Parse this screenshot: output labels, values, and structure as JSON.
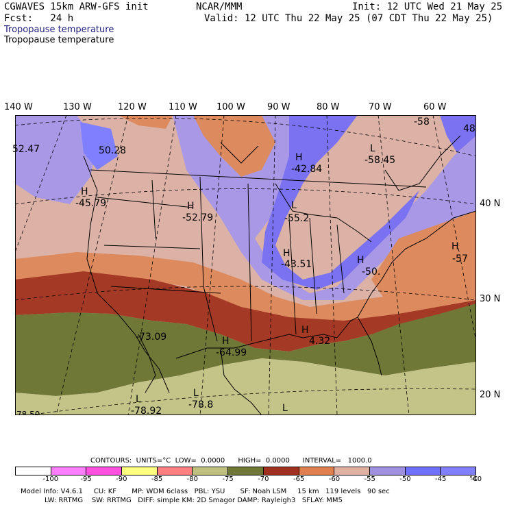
{
  "header": {
    "model": "CGWAVES 15km ARW-GFS init",
    "center": "NCAR/MMM",
    "init": "Init: 12 UTC Wed 21 May 25",
    "fcst": "Fcst:   24 h",
    "valid": "Valid: 12 UTC Thu 22 May 25 (07 CDT Thu 22 May 25)",
    "field1": "Tropopause temperature",
    "field2": "Tropopause temperature"
  },
  "lon_labels": [
    "140 W",
    "130 W",
    "120 W",
    "110 W",
    "100 W",
    "90 W",
    "80 W",
    "70 W",
    "60 W"
  ],
  "lat_labels": [
    "40 N",
    "30 N",
    "20 N"
  ],
  "map_labels": [
    {
      "letter": "",
      "value": "52.47"
    },
    {
      "letter": "",
      "value": "50.28"
    },
    {
      "letter": "H",
      "value": "-45.79"
    },
    {
      "letter": "H",
      "value": "-52.79"
    },
    {
      "letter": "H",
      "value": "-42.84"
    },
    {
      "letter": "L",
      "value": "-58.45"
    },
    {
      "letter": "",
      "value": "-58"
    },
    {
      "letter": "",
      "value": "48"
    },
    {
      "letter": "L",
      "value": "-55.2"
    },
    {
      "letter": "H",
      "value": "-43.51"
    },
    {
      "letter": "H",
      "value": "-50."
    },
    {
      "letter": "H",
      "value": "-57"
    },
    {
      "letter": "",
      "value": "-73.09"
    },
    {
      "letter": "H",
      "value": "-64.99"
    },
    {
      "letter": "H",
      "value": "4.32"
    },
    {
      "letter": "L",
      "value": "-78.92"
    },
    {
      "letter": "L",
      "value": "-78.8"
    },
    {
      "letter": "L",
      "value": ""
    },
    {
      "letter": "",
      "value": "78.50"
    }
  ],
  "contours_line": "CONTOURS:  UNITS=°C  LOW=  0.0000      HIGH=  0.0000      INTERVAL=   1000.0",
  "colorbar": {
    "colors": [
      "#ffffff",
      "#ff80ff",
      "#ff50e0",
      "#ffff80",
      "#ff8080",
      "#c0c080",
      "#707838",
      "#a03020",
      "#e08050",
      "#e0b0a0",
      "#a090e0",
      "#7070ff",
      "#8080ff"
    ],
    "ticks": [
      "-100",
      "-95",
      "-90",
      "-85",
      "-80",
      "-75",
      "-70",
      "-65",
      "-60",
      "-55",
      "-50",
      "-45",
      "-40",
      "°C"
    ]
  },
  "footer": {
    "line1": "Model Info: V4.6.1     CU: KF       MP: WDM 6class   PBL: YSU       SF: Noah LSM     15 km   119 levels   90 sec",
    "line2": "           LW: RRTMG    SW: RRTMG   DIFF: simple KM: 2D Smagor DAMP: Rayleigh3   SFLAY: MM5"
  },
  "colors": {
    "band_blue": "#7a72f0",
    "band_lav": "#a898e6",
    "band_pink": "#dcb2a6",
    "band_orange": "#dd8a5e",
    "band_red": "#a43a26",
    "band_olive": "#707838",
    "band_khaki": "#c3c488"
  }
}
